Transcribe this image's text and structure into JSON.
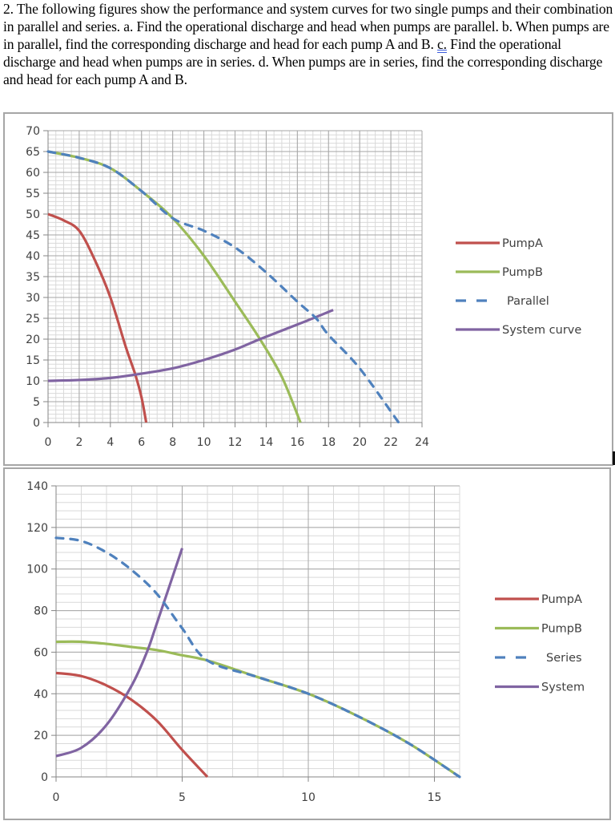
{
  "question": {
    "part1": "2. The following figures show the performance and system curves for two single pumps and their combination in parallel and series. a. Find the operational discharge and head when pumps are parallel. b. When pumps are in parallel, find the corresponding discharge and head for each pump A and B. ",
    "underlined": "c.",
    "part2": " Find the operational discharge and head when pumps are in series. d. When pumps are in series, find the corresponding discharge and head for each pump A and B."
  },
  "colors": {
    "pumpA": "#c0504d",
    "pumpB": "#9bbb59",
    "combined": "#4f81bd",
    "system": "#8064a2",
    "grid_major": "#a6a6a6",
    "grid_minor": "#d9d9d9"
  },
  "chart_data": [
    {
      "type": "line",
      "title": "",
      "xlabel": "",
      "ylabel": "",
      "xlim": [
        0,
        24
      ],
      "ylim": [
        0,
        70
      ],
      "xticks": [
        0,
        2,
        4,
        6,
        8,
        10,
        12,
        14,
        16,
        18,
        20,
        22,
        24
      ],
      "yticks": [
        0,
        5,
        10,
        15,
        20,
        25,
        30,
        35,
        40,
        45,
        50,
        55,
        60,
        65,
        70
      ],
      "grid": true,
      "legend_position": "right",
      "series": [
        {
          "name": "PumpA",
          "style": "solid",
          "color": "#c0504d",
          "x": [
            0,
            1,
            2,
            3,
            4,
            5,
            5.6,
            6,
            6.3
          ],
          "y": [
            50,
            48.5,
            46,
            39,
            30,
            18,
            11.5,
            6,
            0
          ]
        },
        {
          "name": "PumpB",
          "style": "solid",
          "color": "#9bbb59",
          "x": [
            0,
            2,
            4,
            6,
            8,
            10,
            12,
            13.6,
            15,
            16.2
          ],
          "y": [
            65,
            63.5,
            61,
            55.5,
            49,
            40,
            29,
            20,
            11,
            0
          ]
        },
        {
          "name": "Parallel",
          "style": "dashed",
          "color": "#4f81bd",
          "x": [
            0,
            2,
            4,
            6,
            8,
            10,
            12,
            14,
            16,
            17.2,
            18,
            20,
            22.5
          ],
          "y": [
            65,
            63.5,
            61,
            55.5,
            49,
            46,
            42,
            36,
            29,
            25,
            21,
            13,
            0
          ]
        },
        {
          "name": "System curve",
          "style": "solid",
          "color": "#8064a2",
          "x": [
            0,
            2,
            4,
            5.6,
            8,
            10,
            12,
            13.6,
            16,
            17.2,
            18.3
          ],
          "y": [
            10,
            10.2,
            10.7,
            11.5,
            13,
            15,
            17.5,
            20,
            23.5,
            25.3,
            27
          ]
        }
      ]
    },
    {
      "type": "line",
      "title": "",
      "xlabel": "",
      "ylabel": "",
      "xlim": [
        0,
        16
      ],
      "ylim": [
        0,
        140
      ],
      "xticks": [
        0,
        5,
        10,
        15
      ],
      "yticks": [
        0,
        20,
        40,
        60,
        80,
        100,
        120,
        140
      ],
      "grid": true,
      "legend_position": "right",
      "series": [
        {
          "name": "PumpA",
          "style": "solid",
          "color": "#c0504d",
          "x": [
            0,
            1,
            2,
            3,
            4,
            5,
            6
          ],
          "y": [
            50,
            48.5,
            44,
            37,
            27,
            13,
            0
          ]
        },
        {
          "name": "PumpB",
          "style": "solid",
          "color": "#9bbb59",
          "x": [
            0,
            1,
            2,
            3,
            4,
            5,
            6,
            8,
            10,
            12,
            14,
            16
          ],
          "y": [
            65,
            65,
            64,
            62.5,
            61,
            58.5,
            56,
            48,
            40,
            29,
            16,
            0
          ]
        },
        {
          "name": "Series",
          "style": "dashed",
          "color": "#4f81bd",
          "x": [
            0,
            1,
            2,
            3,
            4,
            5,
            6,
            8,
            10,
            12,
            14,
            16
          ],
          "y": [
            115,
            113.5,
            108,
            99.5,
            88,
            71.5,
            56,
            48,
            40,
            29,
            16,
            0
          ]
        },
        {
          "name": "System",
          "style": "solid",
          "color": "#8064a2",
          "x": [
            0,
            1,
            2,
            3,
            3.6,
            4,
            5
          ],
          "y": [
            10,
            14,
            25,
            44,
            60,
            74,
            110
          ]
        }
      ]
    }
  ],
  "chart1": {
    "legend": [
      "PumpA",
      "PumpB",
      "Parallel",
      "System curve"
    ]
  },
  "chart2": {
    "legend": [
      "PumpA",
      "PumpB",
      "Series",
      "System"
    ]
  }
}
